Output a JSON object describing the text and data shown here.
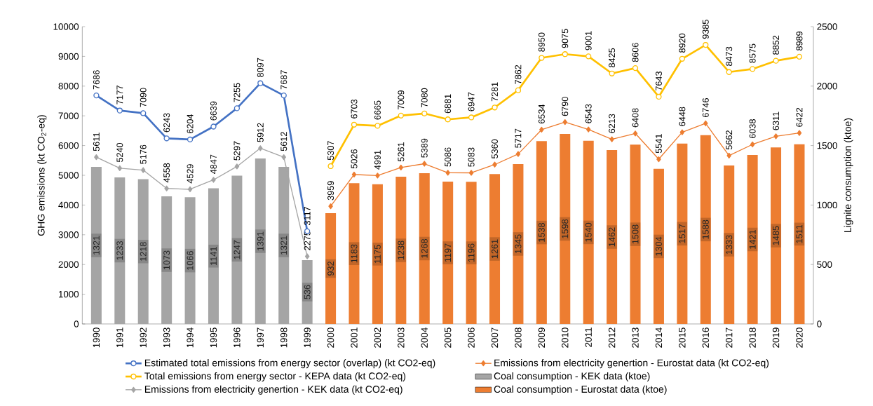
{
  "chart_data": {
    "type": "line",
    "ylabel": "GHG emissions (kt CO$_{2}$-eq)",
    "y2label": "Lignite consumption (ktoe)",
    "categories": [
      "1990",
      "1991",
      "1992",
      "1993",
      "1994",
      "1995",
      "1996",
      "1997",
      "1998",
      "1999",
      "2000",
      "2001",
      "2002",
      "2003",
      "2004",
      "2005",
      "2006",
      "2007",
      "2008",
      "2009",
      "2010",
      "2011",
      "2012",
      "2013",
      "2014",
      "2015",
      "2016",
      "2017",
      "2018",
      "2019",
      "2020"
    ],
    "ylim": [
      0,
      10000
    ],
    "yticks": [
      0,
      1000,
      2000,
      3000,
      4000,
      5000,
      6000,
      7000,
      8000,
      9000,
      10000
    ],
    "y2lim": [
      0,
      2500
    ],
    "y2ticks": [
      0,
      500,
      1000,
      1500,
      2000,
      2500
    ],
    "legend": "bottom",
    "data_labels": true,
    "series": [
      {
        "name": "Estimated total emissions from energy sector (overlap) (kt CO2-eq)",
        "marker": "circle",
        "color": "#4472c4",
        "values": [
          7686,
          7177,
          7090,
          6243,
          6204,
          6639,
          7255,
          8097,
          7687,
          3117,
          null,
          null,
          null,
          null,
          null,
          null,
          null,
          null,
          null,
          null,
          null,
          null,
          null,
          null,
          null,
          null,
          null,
          null,
          null,
          null,
          null
        ]
      },
      {
        "name": "Emissions from electricity genertion - Eurostat data (kt CO2-eq)",
        "marker": "diamond",
        "color": "#ed7d31",
        "values": [
          null,
          null,
          null,
          null,
          null,
          null,
          null,
          null,
          null,
          null,
          3959,
          5026,
          4991,
          5261,
          5389,
          5086,
          5083,
          5360,
          5717,
          6534,
          6790,
          6543,
          6213,
          6408,
          5541,
          6448,
          6746,
          5662,
          6038,
          6311,
          6422
        ]
      },
      {
        "name": "Total emissions from energy sector - KEPA data (kt CO2-eq)",
        "marker": "circle",
        "color": "#ffc000",
        "values": [
          null,
          null,
          null,
          null,
          null,
          null,
          null,
          null,
          null,
          null,
          5307,
          6703,
          6665,
          7009,
          7080,
          6881,
          6947,
          7281,
          7862,
          8950,
          9075,
          9001,
          8425,
          8606,
          7643,
          8920,
          9385,
          8473,
          8575,
          8852,
          8989
        ]
      },
      {
        "name": "Coal consumption - KEK data (ktoe)",
        "type": "bar",
        "axis": "y2",
        "color": "#a5a5a5",
        "values": [
          1321,
          1233,
          1218,
          1073,
          1066,
          1141,
          1247,
          1391,
          1321,
          536,
          null,
          null,
          null,
          null,
          null,
          null,
          null,
          null,
          null,
          null,
          null,
          null,
          null,
          null,
          null,
          null,
          null,
          null,
          null,
          null,
          null
        ]
      },
      {
        "name": "Emissions from electricity genertion - KEK data (kt CO2-eq)",
        "marker": "diamond",
        "color": "#a5a5a5",
        "values": [
          5611,
          5240,
          5176,
          4558,
          4529,
          4847,
          5297,
          5912,
          5612,
          2275,
          null,
          null,
          null,
          null,
          null,
          null,
          null,
          null,
          null,
          null,
          null,
          null,
          null,
          null,
          null,
          null,
          null,
          null,
          null,
          null,
          null
        ]
      },
      {
        "name": "Coal consumption - Eurostat data (ktoe)",
        "type": "bar",
        "axis": "y2",
        "color": "#ed7d31",
        "values": [
          null,
          null,
          null,
          null,
          null,
          null,
          null,
          null,
          null,
          null,
          932,
          1183,
          1175,
          1238,
          1268,
          1197,
          1196,
          1261,
          1345,
          1538,
          1598,
          1540,
          1462,
          1508,
          1304,
          1517,
          1588,
          1333,
          1421,
          1485,
          1511
        ]
      }
    ]
  }
}
